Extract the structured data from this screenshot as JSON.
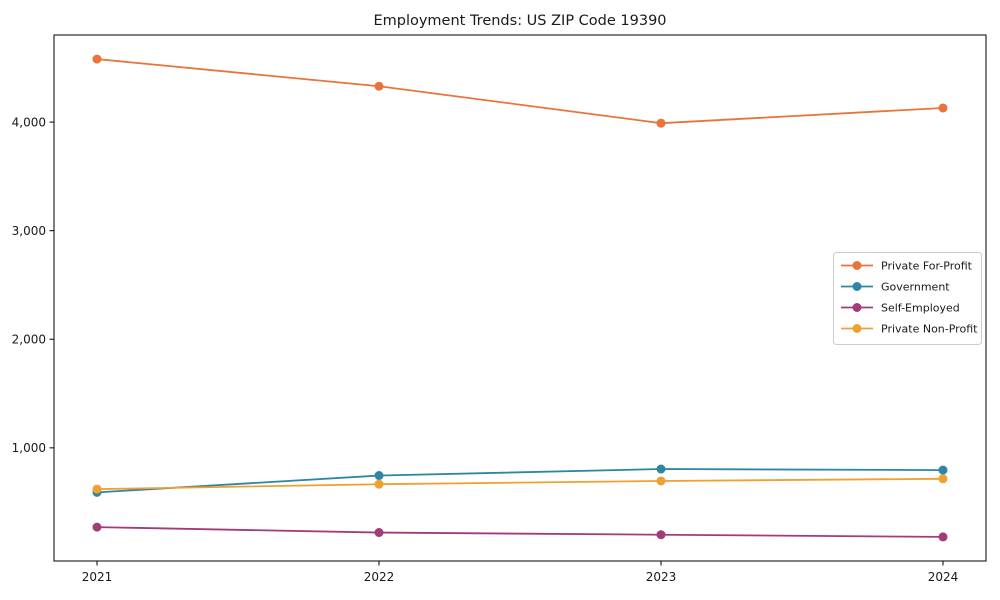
{
  "window": {
    "background": "#ffffff"
  },
  "chart_data": {
    "type": "line",
    "title": "Employment Trends: US ZIP Code 19390",
    "xlabel": "",
    "ylabel": "",
    "categories": [
      "2021",
      "2022",
      "2023",
      "2024"
    ],
    "y_ticks": [
      {
        "value": 1000,
        "label": "1,000"
      },
      {
        "value": 2000,
        "label": "2,000"
      },
      {
        "value": 3000,
        "label": "3,000"
      },
      {
        "value": 4000,
        "label": "4,000"
      }
    ],
    "ylim": [
      -42,
      4802
    ],
    "grid": false,
    "frame_color": "#000000",
    "text_color": "#1a1a1a",
    "legend": {
      "position": "center-right",
      "border_color": "#cccccc",
      "background": "#ffffff"
    },
    "series": [
      {
        "name": "Private For-Profit",
        "color": "#e8743b",
        "values": [
          4580,
          4330,
          3990,
          4130
        ]
      },
      {
        "name": "Government",
        "color": "#2e86a5",
        "values": [
          590,
          745,
          805,
          795
        ]
      },
      {
        "name": "Self-Employed",
        "color": "#a23b77",
        "values": [
          270,
          220,
          200,
          180
        ]
      },
      {
        "name": "Private Non-Profit",
        "color": "#f0a030",
        "values": [
          620,
          665,
          695,
          715
        ]
      }
    ]
  }
}
